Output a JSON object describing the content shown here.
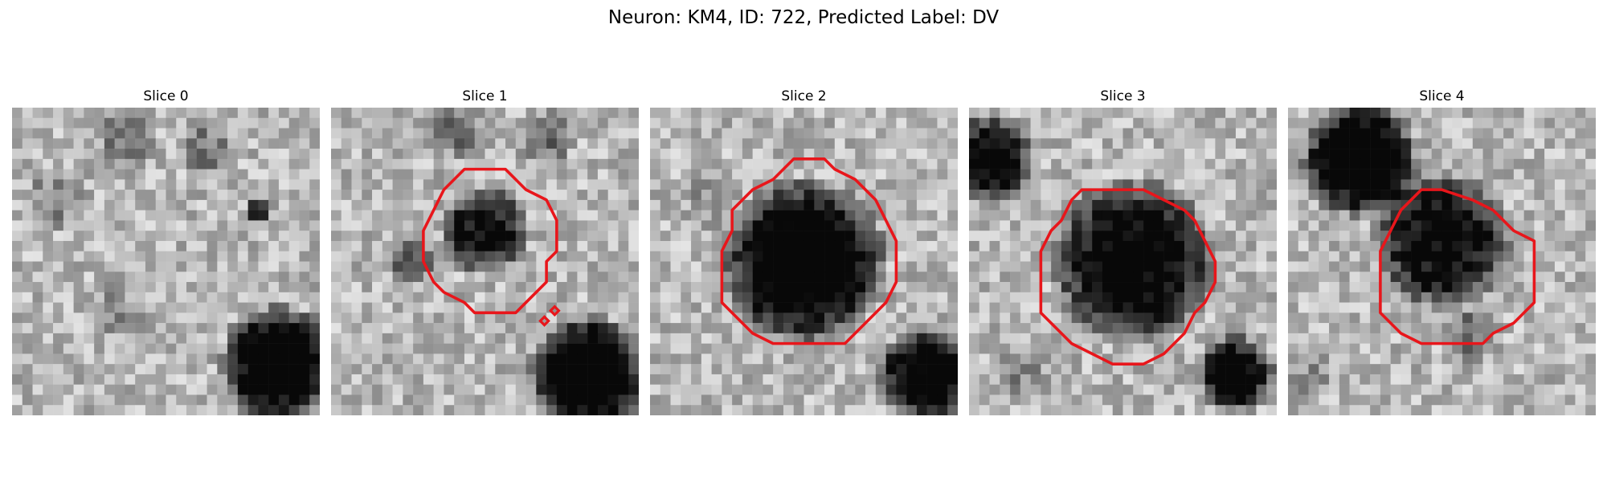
{
  "figure": {
    "title": "Neuron: KM4, ID: 722, Predicted Label: DV"
  },
  "contour_color": "#e8161b",
  "panels": [
    {
      "title": "Slice 0",
      "has_contour": false
    },
    {
      "title": "Slice 1",
      "has_contour": true
    },
    {
      "title": "Slice 2",
      "has_contour": true
    },
    {
      "title": "Slice 3",
      "has_contour": true
    },
    {
      "title": "Slice 4",
      "has_contour": true
    }
  ]
}
